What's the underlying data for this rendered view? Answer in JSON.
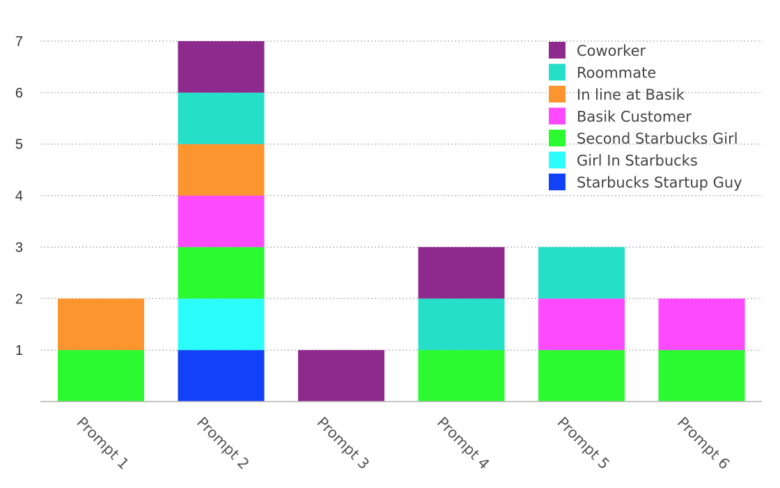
{
  "chart_data": {
    "type": "bar",
    "stacked": true,
    "categories": [
      "Prompt 1",
      "Prompt 2",
      "Prompt 3",
      "Prompt 4",
      "Prompt 5",
      "Prompt 6"
    ],
    "series": [
      {
        "name": "Starbucks Startup Guy",
        "color": "#1241f7",
        "values": [
          0,
          1,
          0,
          0,
          0,
          0
        ]
      },
      {
        "name": "Girl In Starbucks",
        "color": "#2bfdfd",
        "values": [
          0,
          1,
          0,
          0,
          0,
          0
        ]
      },
      {
        "name": "Second Starbucks Girl",
        "color": "#2afa2f",
        "values": [
          1,
          1,
          0,
          1,
          1,
          1
        ]
      },
      {
        "name": "Basik Customer",
        "color": "#fd4afd",
        "values": [
          0,
          1,
          0,
          0,
          1,
          1
        ]
      },
      {
        "name": "In line at Basik",
        "color": "#fd952e",
        "values": [
          1,
          1,
          0,
          0,
          0,
          0
        ]
      },
      {
        "name": "Roommate",
        "color": "#26dfc9",
        "values": [
          0,
          1,
          0,
          1,
          1,
          0
        ]
      },
      {
        "name": "Coworker",
        "color": "#8e2a8d",
        "values": [
          0,
          1,
          1,
          1,
          0,
          0
        ]
      }
    ],
    "ylim": [
      0,
      7
    ],
    "yticks": [
      1,
      2,
      3,
      4,
      5,
      6,
      7
    ],
    "grid": true,
    "legend": "top-right",
    "legend_order": [
      "Coworker",
      "Roommate",
      "In line at Basik",
      "Basik Customer",
      "Second Starbucks Girl",
      "Girl In Starbucks",
      "Starbucks Startup Guy"
    ],
    "xlabel_rotation": "diagonal",
    "title": "",
    "xlabel": "",
    "ylabel": ""
  }
}
